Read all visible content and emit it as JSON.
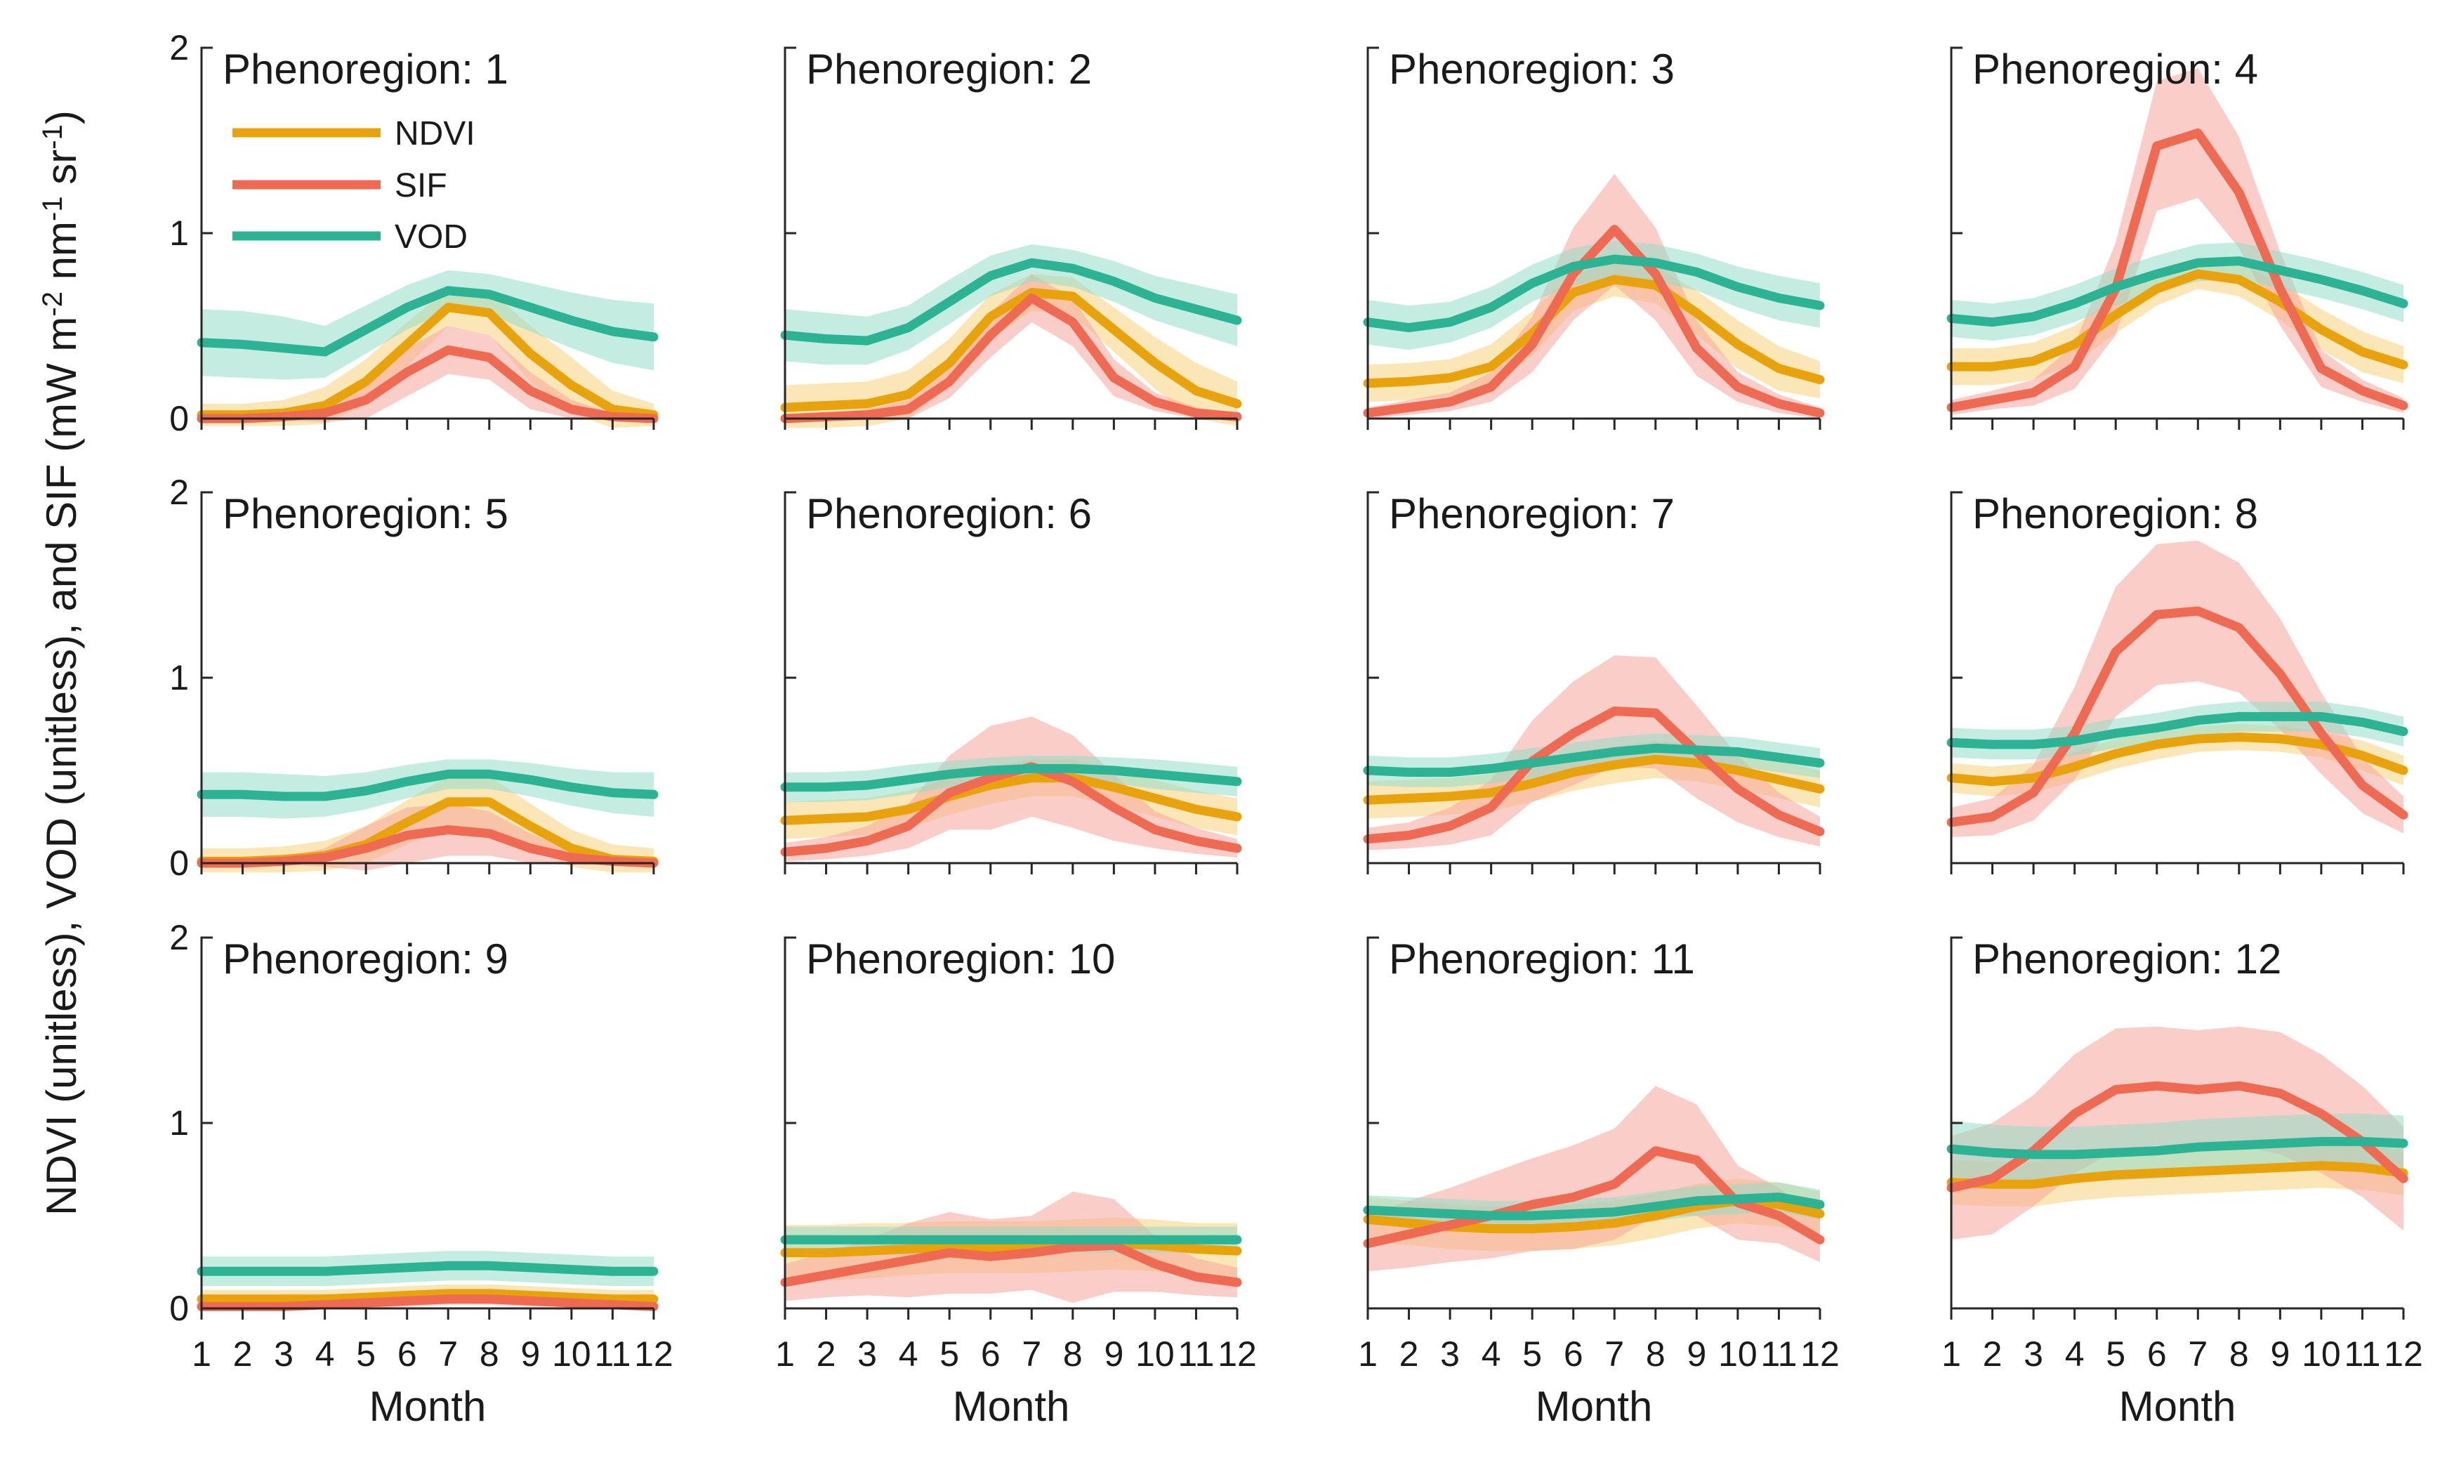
{
  "chart_data": {
    "type": "line",
    "layout": "3x4 small multiples",
    "ylabel": "NDVI (unitless), VOD (unitless), and SIF (mW m⁻² nm⁻¹ sr⁻¹)",
    "ylabel_parts": {
      "prefix": "NDVI (unitless), VOD (unitless), and SIF (mW m",
      "exp1": "-2",
      "mid1": " nm",
      "exp2": "-1",
      "mid2": " sr",
      "exp3": "-1",
      "suffix": ")"
    },
    "xlabel": "Month",
    "x": [
      1,
      2,
      3,
      4,
      5,
      6,
      7,
      8,
      9,
      10,
      11,
      12
    ],
    "x_tick_labels": [
      "1",
      "2",
      "3",
      "4",
      "5",
      "6",
      "7",
      "8",
      "9",
      "10",
      "11",
      "12"
    ],
    "ylim": [
      0,
      2
    ],
    "y_ticks": [
      0,
      1,
      2
    ],
    "y_tick_labels": [
      "0",
      "1",
      "2"
    ],
    "title_prefix": "Phenoregion: ",
    "legend": {
      "placement": "inside top-left of first panel",
      "entries": [
        "NDVI",
        "SIF",
        "VOD"
      ]
    },
    "colors": {
      "NDVI": "#e8a20c",
      "SIF": "#ee6a52",
      "VOD": "#2cb394",
      "NDVI_band": "#f5d27a",
      "SIF_band": "#f6a59a",
      "VOD_band": "#93dcc8"
    },
    "panels": [
      {
        "id": "1",
        "NDVI": [
          0.02,
          0.02,
          0.03,
          0.07,
          0.2,
          0.4,
          0.6,
          0.57,
          0.35,
          0.18,
          0.05,
          0.02
        ],
        "NDVI_band": [
          0.06,
          0.06,
          0.07,
          0.1,
          0.12,
          0.12,
          0.1,
          0.12,
          0.15,
          0.15,
          0.1,
          0.06
        ],
        "SIF": [
          0.0,
          0.0,
          0.01,
          0.03,
          0.1,
          0.25,
          0.37,
          0.33,
          0.15,
          0.05,
          0.01,
          0.0
        ],
        "SIF_band": [
          0.01,
          0.01,
          0.02,
          0.05,
          0.1,
          0.13,
          0.13,
          0.12,
          0.1,
          0.05,
          0.02,
          0.01
        ],
        "VOD": [
          0.41,
          0.4,
          0.38,
          0.36,
          0.48,
          0.6,
          0.69,
          0.67,
          0.6,
          0.53,
          0.47,
          0.44
        ],
        "VOD_band": [
          0.18,
          0.18,
          0.17,
          0.14,
          0.13,
          0.12,
          0.11,
          0.11,
          0.13,
          0.15,
          0.17,
          0.18
        ]
      },
      {
        "id": "2",
        "NDVI": [
          0.06,
          0.07,
          0.08,
          0.13,
          0.3,
          0.55,
          0.68,
          0.66,
          0.48,
          0.3,
          0.15,
          0.08
        ],
        "NDVI_band": [
          0.12,
          0.12,
          0.12,
          0.13,
          0.13,
          0.12,
          0.1,
          0.1,
          0.12,
          0.14,
          0.15,
          0.12
        ],
        "SIF": [
          0.0,
          0.01,
          0.02,
          0.05,
          0.2,
          0.45,
          0.65,
          0.52,
          0.22,
          0.09,
          0.03,
          0.01
        ],
        "SIF_band": [
          0.02,
          0.02,
          0.03,
          0.05,
          0.09,
          0.12,
          0.13,
          0.13,
          0.1,
          0.05,
          0.03,
          0.02
        ],
        "VOD": [
          0.45,
          0.43,
          0.42,
          0.49,
          0.63,
          0.77,
          0.84,
          0.81,
          0.74,
          0.65,
          0.59,
          0.53
        ],
        "VOD_band": [
          0.14,
          0.14,
          0.13,
          0.12,
          0.12,
          0.11,
          0.1,
          0.1,
          0.11,
          0.12,
          0.13,
          0.14
        ]
      },
      {
        "id": "3",
        "NDVI": [
          0.19,
          0.2,
          0.22,
          0.28,
          0.46,
          0.68,
          0.75,
          0.72,
          0.57,
          0.4,
          0.27,
          0.21
        ],
        "NDVI_band": [
          0.1,
          0.1,
          0.1,
          0.12,
          0.12,
          0.1,
          0.09,
          0.1,
          0.12,
          0.13,
          0.12,
          0.1
        ],
        "SIF": [
          0.03,
          0.06,
          0.09,
          0.17,
          0.4,
          0.78,
          1.02,
          0.78,
          0.38,
          0.17,
          0.08,
          0.03
        ],
        "SIF_band": [
          0.03,
          0.04,
          0.05,
          0.08,
          0.15,
          0.25,
          0.3,
          0.25,
          0.15,
          0.08,
          0.05,
          0.03
        ],
        "VOD": [
          0.52,
          0.49,
          0.52,
          0.6,
          0.73,
          0.82,
          0.86,
          0.84,
          0.79,
          0.71,
          0.65,
          0.61
        ],
        "VOD_band": [
          0.12,
          0.12,
          0.11,
          0.11,
          0.1,
          0.1,
          0.1,
          0.1,
          0.1,
          0.11,
          0.12,
          0.12
        ]
      },
      {
        "id": "4",
        "NDVI": [
          0.28,
          0.28,
          0.31,
          0.4,
          0.56,
          0.7,
          0.78,
          0.75,
          0.63,
          0.48,
          0.36,
          0.29
        ],
        "NDVI_band": [
          0.1,
          0.1,
          0.1,
          0.1,
          0.1,
          0.09,
          0.08,
          0.09,
          0.1,
          0.11,
          0.11,
          0.1
        ],
        "SIF": [
          0.06,
          0.1,
          0.14,
          0.28,
          0.7,
          1.47,
          1.54,
          1.22,
          0.7,
          0.27,
          0.15,
          0.07
        ],
        "SIF_band": [
          0.04,
          0.05,
          0.07,
          0.12,
          0.25,
          0.35,
          0.35,
          0.3,
          0.2,
          0.1,
          0.06,
          0.04
        ],
        "VOD": [
          0.54,
          0.52,
          0.55,
          0.62,
          0.71,
          0.78,
          0.84,
          0.85,
          0.8,
          0.75,
          0.69,
          0.62
        ],
        "VOD_band": [
          0.1,
          0.1,
          0.1,
          0.1,
          0.1,
          0.1,
          0.1,
          0.1,
          0.1,
          0.1,
          0.1,
          0.1
        ]
      },
      {
        "id": "5",
        "NDVI": [
          0.01,
          0.01,
          0.02,
          0.04,
          0.1,
          0.22,
          0.33,
          0.33,
          0.2,
          0.08,
          0.02,
          0.01
        ],
        "NDVI_band": [
          0.07,
          0.07,
          0.07,
          0.08,
          0.1,
          0.12,
          0.14,
          0.14,
          0.12,
          0.1,
          0.08,
          0.07
        ],
        "SIF": [
          0.0,
          0.0,
          0.01,
          0.03,
          0.08,
          0.15,
          0.18,
          0.16,
          0.08,
          0.03,
          0.01,
          0.0
        ],
        "SIF_band": [
          0.01,
          0.01,
          0.02,
          0.05,
          0.12,
          0.15,
          0.14,
          0.12,
          0.08,
          0.04,
          0.02,
          0.01
        ],
        "VOD": [
          0.37,
          0.37,
          0.36,
          0.36,
          0.39,
          0.44,
          0.48,
          0.48,
          0.45,
          0.41,
          0.38,
          0.37
        ],
        "VOD_band": [
          0.12,
          0.12,
          0.12,
          0.11,
          0.1,
          0.09,
          0.08,
          0.08,
          0.09,
          0.1,
          0.11,
          0.12
        ]
      },
      {
        "id": "6",
        "NDVI": [
          0.23,
          0.24,
          0.25,
          0.29,
          0.36,
          0.42,
          0.46,
          0.46,
          0.41,
          0.35,
          0.29,
          0.25
        ],
        "NDVI_band": [
          0.1,
          0.1,
          0.1,
          0.1,
          0.1,
          0.1,
          0.1,
          0.1,
          0.1,
          0.1,
          0.1,
          0.1
        ],
        "SIF": [
          0.06,
          0.08,
          0.12,
          0.2,
          0.38,
          0.46,
          0.52,
          0.44,
          0.3,
          0.18,
          0.12,
          0.08
        ],
        "SIF_band": [
          0.05,
          0.06,
          0.08,
          0.12,
          0.2,
          0.28,
          0.27,
          0.25,
          0.18,
          0.1,
          0.07,
          0.05
        ],
        "VOD": [
          0.41,
          0.41,
          0.42,
          0.45,
          0.48,
          0.5,
          0.51,
          0.51,
          0.5,
          0.48,
          0.46,
          0.44
        ],
        "VOD_band": [
          0.08,
          0.08,
          0.08,
          0.08,
          0.07,
          0.07,
          0.07,
          0.07,
          0.07,
          0.08,
          0.08,
          0.08
        ]
      },
      {
        "id": "7",
        "NDVI": [
          0.34,
          0.35,
          0.36,
          0.38,
          0.43,
          0.49,
          0.53,
          0.56,
          0.54,
          0.5,
          0.45,
          0.4
        ],
        "NDVI_band": [
          0.1,
          0.1,
          0.1,
          0.1,
          0.1,
          0.1,
          0.1,
          0.1,
          0.1,
          0.1,
          0.1,
          0.1
        ],
        "SIF": [
          0.13,
          0.15,
          0.2,
          0.3,
          0.55,
          0.7,
          0.82,
          0.81,
          0.6,
          0.4,
          0.26,
          0.17
        ],
        "SIF_band": [
          0.06,
          0.07,
          0.1,
          0.15,
          0.22,
          0.28,
          0.3,
          0.3,
          0.25,
          0.18,
          0.12,
          0.08
        ],
        "VOD": [
          0.5,
          0.49,
          0.49,
          0.51,
          0.54,
          0.57,
          0.6,
          0.62,
          0.61,
          0.6,
          0.57,
          0.54
        ],
        "VOD_band": [
          0.08,
          0.08,
          0.08,
          0.08,
          0.08,
          0.08,
          0.08,
          0.08,
          0.08,
          0.08,
          0.08,
          0.08
        ]
      },
      {
        "id": "8",
        "NDVI": [
          0.46,
          0.44,
          0.46,
          0.52,
          0.59,
          0.64,
          0.67,
          0.68,
          0.67,
          0.64,
          0.58,
          0.5
        ],
        "NDVI_band": [
          0.08,
          0.08,
          0.08,
          0.08,
          0.08,
          0.08,
          0.07,
          0.07,
          0.07,
          0.07,
          0.08,
          0.08
        ],
        "SIF": [
          0.22,
          0.25,
          0.38,
          0.7,
          1.14,
          1.34,
          1.36,
          1.27,
          1.02,
          0.7,
          0.42,
          0.26
        ],
        "SIF_band": [
          0.08,
          0.1,
          0.15,
          0.25,
          0.35,
          0.38,
          0.38,
          0.35,
          0.3,
          0.22,
          0.15,
          0.1
        ],
        "VOD": [
          0.65,
          0.64,
          0.64,
          0.66,
          0.7,
          0.73,
          0.77,
          0.79,
          0.79,
          0.79,
          0.76,
          0.71
        ],
        "VOD_band": [
          0.08,
          0.08,
          0.08,
          0.08,
          0.08,
          0.08,
          0.08,
          0.08,
          0.08,
          0.08,
          0.08,
          0.08
        ]
      },
      {
        "id": "9",
        "NDVI": [
          0.05,
          0.05,
          0.05,
          0.05,
          0.06,
          0.07,
          0.08,
          0.08,
          0.07,
          0.06,
          0.05,
          0.05
        ],
        "NDVI_band": [
          0.05,
          0.05,
          0.05,
          0.05,
          0.05,
          0.05,
          0.05,
          0.05,
          0.05,
          0.05,
          0.05,
          0.05
        ],
        "SIF": [
          0.01,
          0.01,
          0.01,
          0.02,
          0.03,
          0.04,
          0.05,
          0.05,
          0.04,
          0.03,
          0.02,
          0.01
        ],
        "SIF_band": [
          0.02,
          0.02,
          0.02,
          0.02,
          0.03,
          0.03,
          0.03,
          0.03,
          0.03,
          0.02,
          0.02,
          0.02
        ],
        "VOD": [
          0.2,
          0.2,
          0.2,
          0.2,
          0.21,
          0.22,
          0.23,
          0.23,
          0.22,
          0.21,
          0.2,
          0.2
        ],
        "VOD_band": [
          0.08,
          0.08,
          0.08,
          0.08,
          0.08,
          0.08,
          0.08,
          0.08,
          0.08,
          0.08,
          0.08,
          0.08
        ]
      },
      {
        "id": "10",
        "NDVI": [
          0.3,
          0.3,
          0.31,
          0.32,
          0.33,
          0.33,
          0.33,
          0.34,
          0.35,
          0.34,
          0.32,
          0.31
        ],
        "NDVI_band": [
          0.15,
          0.15,
          0.15,
          0.14,
          0.14,
          0.14,
          0.14,
          0.14,
          0.14,
          0.14,
          0.14,
          0.15
        ],
        "SIF": [
          0.14,
          0.18,
          0.22,
          0.26,
          0.3,
          0.28,
          0.3,
          0.33,
          0.34,
          0.24,
          0.17,
          0.14
        ],
        "SIF_band": [
          0.1,
          0.12,
          0.15,
          0.2,
          0.22,
          0.2,
          0.2,
          0.3,
          0.25,
          0.15,
          0.1,
          0.08
        ],
        "VOD": [
          0.37,
          0.37,
          0.37,
          0.37,
          0.37,
          0.37,
          0.37,
          0.37,
          0.37,
          0.37,
          0.37,
          0.37
        ],
        "VOD_band": [
          0.07,
          0.07,
          0.07,
          0.07,
          0.07,
          0.07,
          0.07,
          0.07,
          0.07,
          0.07,
          0.07,
          0.07
        ]
      },
      {
        "id": "11",
        "NDVI": [
          0.48,
          0.46,
          0.44,
          0.43,
          0.43,
          0.44,
          0.46,
          0.5,
          0.55,
          0.58,
          0.56,
          0.51
        ],
        "NDVI_band": [
          0.12,
          0.12,
          0.12,
          0.12,
          0.12,
          0.12,
          0.12,
          0.12,
          0.12,
          0.12,
          0.12,
          0.12
        ],
        "SIF": [
          0.35,
          0.4,
          0.45,
          0.5,
          0.56,
          0.6,
          0.67,
          0.85,
          0.8,
          0.57,
          0.5,
          0.37
        ],
        "SIF_band": [
          0.15,
          0.18,
          0.2,
          0.23,
          0.25,
          0.28,
          0.3,
          0.35,
          0.3,
          0.2,
          0.15,
          0.12
        ],
        "VOD": [
          0.53,
          0.52,
          0.51,
          0.5,
          0.5,
          0.51,
          0.52,
          0.55,
          0.58,
          0.59,
          0.6,
          0.56
        ],
        "VOD_band": [
          0.08,
          0.08,
          0.08,
          0.08,
          0.08,
          0.08,
          0.08,
          0.08,
          0.08,
          0.08,
          0.08,
          0.08
        ]
      },
      {
        "id": "12",
        "NDVI": [
          0.68,
          0.67,
          0.67,
          0.7,
          0.72,
          0.73,
          0.74,
          0.75,
          0.76,
          0.77,
          0.76,
          0.73
        ],
        "NDVI_band": [
          0.12,
          0.12,
          0.12,
          0.12,
          0.12,
          0.12,
          0.12,
          0.12,
          0.12,
          0.12,
          0.12,
          0.12
        ],
        "SIF": [
          0.65,
          0.7,
          0.85,
          1.05,
          1.18,
          1.2,
          1.18,
          1.2,
          1.16,
          1.05,
          0.9,
          0.7
        ],
        "SIF_band": [
          0.28,
          0.3,
          0.3,
          0.32,
          0.33,
          0.32,
          0.32,
          0.32,
          0.33,
          0.32,
          0.3,
          0.28
        ],
        "VOD": [
          0.86,
          0.84,
          0.83,
          0.83,
          0.84,
          0.85,
          0.87,
          0.88,
          0.89,
          0.9,
          0.9,
          0.89
        ],
        "VOD_band": [
          0.15,
          0.15,
          0.15,
          0.15,
          0.15,
          0.15,
          0.15,
          0.15,
          0.15,
          0.15,
          0.15,
          0.15
        ]
      }
    ]
  }
}
